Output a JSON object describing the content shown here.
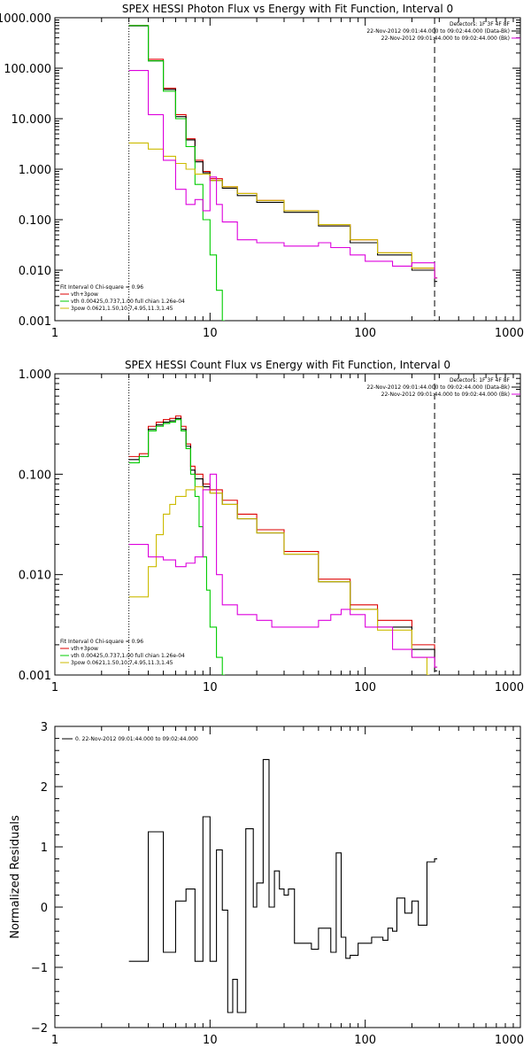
{
  "chart_data": [
    {
      "type": "line",
      "title": "SPEX HESSI Photon Flux vs Energy with Fit Function, Interval 0",
      "xlabel": "",
      "ylabel": "",
      "xscale": "log",
      "yscale": "log",
      "xlim": [
        1,
        1000
      ],
      "ylim": [
        0.001,
        1000
      ],
      "x_ticks": [
        "1",
        "10",
        "100",
        "1000"
      ],
      "y_ticks": [
        "0.001",
        "0.010",
        "0.100",
        "1.000",
        "10.000",
        "100.000",
        "1000.000"
      ],
      "header": {
        "detectors": "Detectors: 1F 3F 4F 8F",
        "lines": [
          {
            "text": "22-Nov-2012 09:01:44.000 to 09:02:44.000 (Data-Bk)",
            "color": "#000000"
          },
          {
            "text": "22-Nov-2012 09:01:44.000 to 09:02:44.000 (Bk)",
            "color": "#dd00dd"
          }
        ]
      },
      "fit_legend": {
        "title": "Fit Interval 0   Chi-square = 0.96",
        "entries": [
          {
            "text": "vth+3pow",
            "color": "#dd0000"
          },
          {
            "text": "vth 0.00425,0.737,1.00  full chian 1.26e-04",
            "color": "#00cc00"
          },
          {
            "text": "3pow 0.0621,1.50,10.7,4.95,11.3,1.45",
            "color": "#ccbb00"
          }
        ]
      },
      "vlines": [
        {
          "x": 3,
          "style": "dotted"
        },
        {
          "x": 280,
          "style": "dashed"
        }
      ],
      "series": [
        {
          "color": "#dd0000",
          "x": [
            3,
            4,
            5,
            6,
            7,
            8,
            9,
            10,
            12,
            15,
            20,
            30,
            50,
            80,
            120,
            200,
            280
          ],
          "y": [
            700,
            150,
            40,
            12,
            4,
            1.5,
            0.9,
            0.65,
            0.45,
            0.33,
            0.24,
            0.15,
            0.08,
            0.04,
            0.022,
            0.011,
            0.007
          ]
        },
        {
          "color": "#000000",
          "x": [
            3,
            4,
            5,
            6,
            7,
            8,
            9,
            10,
            12,
            15,
            20,
            30,
            50,
            80,
            120,
            200,
            280
          ],
          "y": [
            690,
            140,
            38,
            11,
            3.8,
            1.4,
            0.85,
            0.6,
            0.42,
            0.3,
            0.22,
            0.14,
            0.075,
            0.035,
            0.02,
            0.01,
            0.006
          ]
        },
        {
          "color": "#00cc00",
          "x": [
            3,
            4,
            5,
            6,
            7,
            8,
            9,
            10,
            11,
            12
          ],
          "y": [
            700,
            140,
            35,
            10,
            2.8,
            0.5,
            0.1,
            0.02,
            0.004,
            0.001
          ]
        },
        {
          "color": "#ccbb00",
          "x": [
            3,
            4,
            5,
            6,
            7,
            8,
            10,
            12,
            15,
            20,
            30,
            50,
            80,
            120,
            200,
            280
          ],
          "y": [
            3.3,
            2.5,
            1.8,
            1.3,
            1.0,
            0.8,
            0.6,
            0.45,
            0.33,
            0.24,
            0.15,
            0.08,
            0.04,
            0.022,
            0.011,
            0.007
          ]
        },
        {
          "color": "#dd00dd",
          "x": [
            3,
            4,
            5,
            6,
            7,
            8,
            9,
            10,
            11,
            12,
            15,
            20,
            30,
            40,
            50,
            60,
            80,
            100,
            150,
            200,
            280
          ],
          "y": [
            90,
            12,
            1.5,
            0.4,
            0.2,
            0.25,
            0.15,
            0.7,
            0.2,
            0.09,
            0.04,
            0.035,
            0.03,
            0.03,
            0.035,
            0.028,
            0.02,
            0.015,
            0.012,
            0.014,
            0.007
          ]
        }
      ]
    },
    {
      "type": "line",
      "title": "SPEX HESSI Count Flux vs Energy with Fit Function, Interval 0",
      "xlabel": "",
      "ylabel": "",
      "xscale": "log",
      "yscale": "log",
      "xlim": [
        1,
        1000
      ],
      "ylim": [
        0.001,
        1
      ],
      "x_ticks": [
        "1",
        "10",
        "100",
        "1000"
      ],
      "y_ticks": [
        "0.001",
        "0.010",
        "0.100",
        "1.000"
      ],
      "header": {
        "detectors": "Detectors: 1F 3F 4F 8F",
        "lines": [
          {
            "text": "22-Nov-2012 09:01:44.000 to 09:02:44.000 (Data-Bk)",
            "color": "#000000"
          },
          {
            "text": "22-Nov-2012 09:01:44.000 to 09:02:44.000 (Bk)",
            "color": "#dd00dd"
          }
        ]
      },
      "fit_legend": {
        "title": "Fit Interval 0   Chi-square = 0.96",
        "entries": [
          {
            "text": "vth+3pow",
            "color": "#dd0000"
          },
          {
            "text": "vth 0.00425,0.737,1.00  full chian 1.26e-04",
            "color": "#00cc00"
          },
          {
            "text": "3pow 0.0621,1.50,10.7,4.95,11.3,1.45",
            "color": "#ccbb00"
          }
        ]
      },
      "vlines": [
        {
          "x": 3,
          "style": "dotted"
        },
        {
          "x": 280,
          "style": "dashed"
        }
      ],
      "series": [
        {
          "color": "#dd0000",
          "x": [
            3,
            3.5,
            4,
            4.5,
            5,
            5.5,
            6,
            6.5,
            7,
            7.5,
            8,
            9,
            10,
            12,
            15,
            20,
            30,
            50,
            80,
            120,
            200,
            280
          ],
          "y": [
            0.15,
            0.16,
            0.3,
            0.33,
            0.35,
            0.36,
            0.38,
            0.3,
            0.2,
            0.12,
            0.1,
            0.08,
            0.07,
            0.055,
            0.04,
            0.028,
            0.017,
            0.009,
            0.005,
            0.0035,
            0.002,
            0.0012
          ]
        },
        {
          "color": "#000000",
          "x": [
            3,
            3.5,
            4,
            4.5,
            5,
            5.5,
            6,
            6.5,
            7,
            7.5,
            8,
            9,
            10,
            12,
            15,
            20,
            30,
            50,
            80,
            120,
            200,
            280
          ],
          "y": [
            0.14,
            0.15,
            0.28,
            0.31,
            0.33,
            0.34,
            0.36,
            0.28,
            0.19,
            0.11,
            0.09,
            0.075,
            0.065,
            0.05,
            0.036,
            0.026,
            0.016,
            0.0085,
            0.0045,
            0.003,
            0.0018,
            0.0011
          ]
        },
        {
          "color": "#00cc00",
          "x": [
            3,
            3.5,
            4,
            4.5,
            5,
            5.5,
            6,
            6.5,
            7,
            7.5,
            8,
            8.5,
            9,
            9.5,
            10,
            11,
            12
          ],
          "y": [
            0.13,
            0.15,
            0.27,
            0.3,
            0.32,
            0.33,
            0.35,
            0.27,
            0.18,
            0.1,
            0.06,
            0.03,
            0.015,
            0.007,
            0.003,
            0.0015,
            0.001
          ]
        },
        {
          "color": "#ccbb00",
          "x": [
            3,
            4,
            4.5,
            5,
            5.5,
            6,
            7,
            8,
            9,
            10,
            12,
            15,
            20,
            30,
            50,
            80,
            120,
            200,
            250
          ],
          "y": [
            0.006,
            0.012,
            0.025,
            0.04,
            0.05,
            0.06,
            0.07,
            0.075,
            0.07,
            0.065,
            0.05,
            0.036,
            0.026,
            0.016,
            0.0085,
            0.0045,
            0.0028,
            0.0015,
            0.001
          ]
        },
        {
          "color": "#dd00dd",
          "x": [
            3,
            4,
            5,
            6,
            7,
            8,
            9,
            10,
            11,
            12,
            15,
            20,
            25,
            30,
            40,
            50,
            60,
            70,
            80,
            100,
            150,
            200,
            280
          ],
          "y": [
            0.02,
            0.015,
            0.014,
            0.012,
            0.013,
            0.015,
            0.07,
            0.1,
            0.01,
            0.005,
            0.004,
            0.0035,
            0.003,
            0.003,
            0.003,
            0.0035,
            0.004,
            0.0045,
            0.004,
            0.003,
            0.0018,
            0.0015,
            0.0012
          ]
        }
      ]
    },
    {
      "type": "line",
      "title": "",
      "xlabel": "",
      "ylabel": "Normalized Residuals",
      "xscale": "log",
      "yscale": "linear",
      "xlim": [
        1,
        1000
      ],
      "ylim": [
        -2,
        3
      ],
      "x_ticks": [
        "1",
        "10",
        "100",
        "1000"
      ],
      "y_ticks": [
        "-2",
        "-1",
        "0",
        "1",
        "2",
        "3"
      ],
      "legend": "0. 22-Nov-2012 09:01:44.000 to 09:02:44.000",
      "series": [
        {
          "color": "#000000",
          "x": [
            3,
            4,
            5,
            6,
            7,
            8,
            9,
            10,
            11,
            12,
            13,
            14,
            15,
            17,
            19,
            20,
            22,
            24,
            26,
            28,
            30,
            32,
            35,
            40,
            45,
            50,
            55,
            60,
            65,
            70,
            75,
            80,
            90,
            100,
            110,
            120,
            130,
            140,
            150,
            160,
            180,
            200,
            220,
            250,
            280
          ],
          "y": [
            -0.9,
            1.25,
            -0.75,
            0.1,
            0.3,
            -0.9,
            1.5,
            -0.9,
            0.95,
            -0.05,
            -1.75,
            -1.2,
            -1.75,
            1.3,
            0.0,
            0.4,
            2.45,
            0.0,
            0.6,
            0.3,
            0.2,
            0.3,
            -0.6,
            -0.6,
            -0.7,
            -0.35,
            -0.35,
            -0.75,
            0.9,
            -0.5,
            -0.85,
            -0.8,
            -0.6,
            -0.6,
            -0.5,
            -0.5,
            -0.55,
            -0.35,
            -0.4,
            0.15,
            -0.1,
            0.1,
            -0.3,
            0.75,
            0.8
          ]
        }
      ]
    }
  ]
}
